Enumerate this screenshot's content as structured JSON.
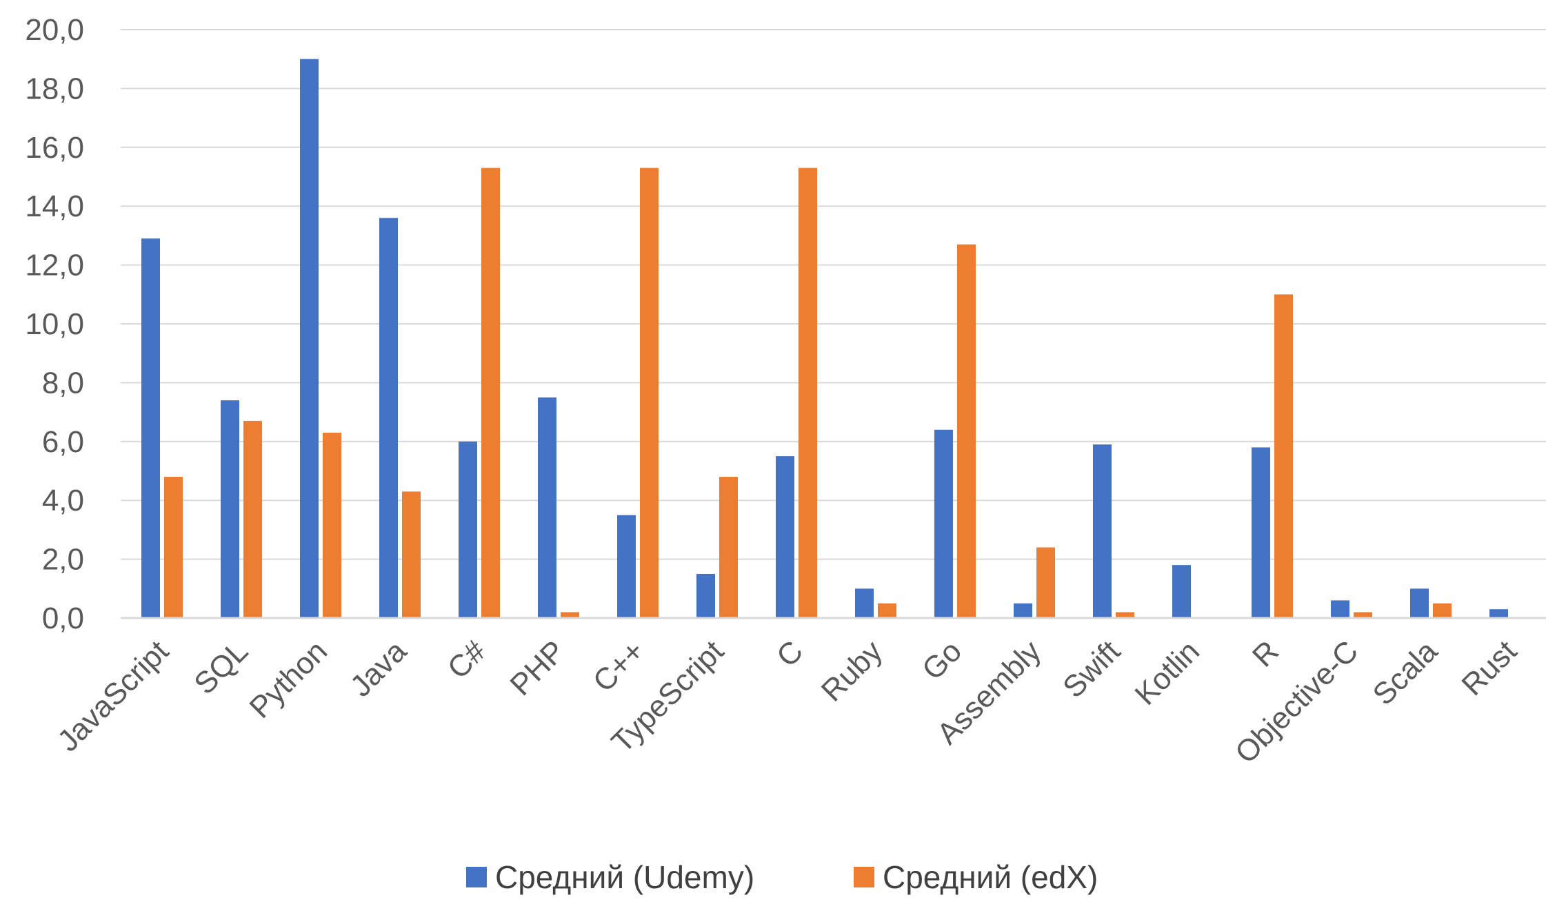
{
  "chart_data": {
    "type": "bar",
    "categories": [
      "JavaScript",
      "SQL",
      "Python",
      "Java",
      "C#",
      "PHP",
      "C++",
      "TypeScript",
      "C",
      "Ruby",
      "Go",
      "Assembly",
      "Swift",
      "Kotlin",
      "R",
      "Objective-C",
      "Scala",
      "Rust"
    ],
    "series": [
      {
        "name": "Средний (Udemy)",
        "color": "#4472C4",
        "values": [
          12.9,
          7.4,
          19.0,
          13.6,
          6.0,
          7.5,
          3.5,
          1.5,
          5.5,
          1.0,
          6.4,
          0.5,
          5.9,
          1.8,
          5.8,
          0.6,
          1.0,
          0.3
        ]
      },
      {
        "name": "Средний (edX)",
        "color": "#ED7D31",
        "values": [
          4.8,
          6.7,
          6.3,
          4.3,
          15.3,
          0.2,
          15.3,
          4.8,
          15.3,
          0.5,
          12.7,
          2.4,
          0.2,
          0.0,
          11.0,
          0.2,
          0.5,
          0.0
        ]
      }
    ],
    "y_ticks": [
      "0,0",
      "2,0",
      "4,0",
      "6,0",
      "8,0",
      "10,0",
      "12,0",
      "14,0",
      "16,0",
      "18,0",
      "20,0"
    ],
    "ylim": [
      0,
      20
    ],
    "grid": true,
    "legend_position": "bottom",
    "gridline_color": "#D9D9D9"
  }
}
